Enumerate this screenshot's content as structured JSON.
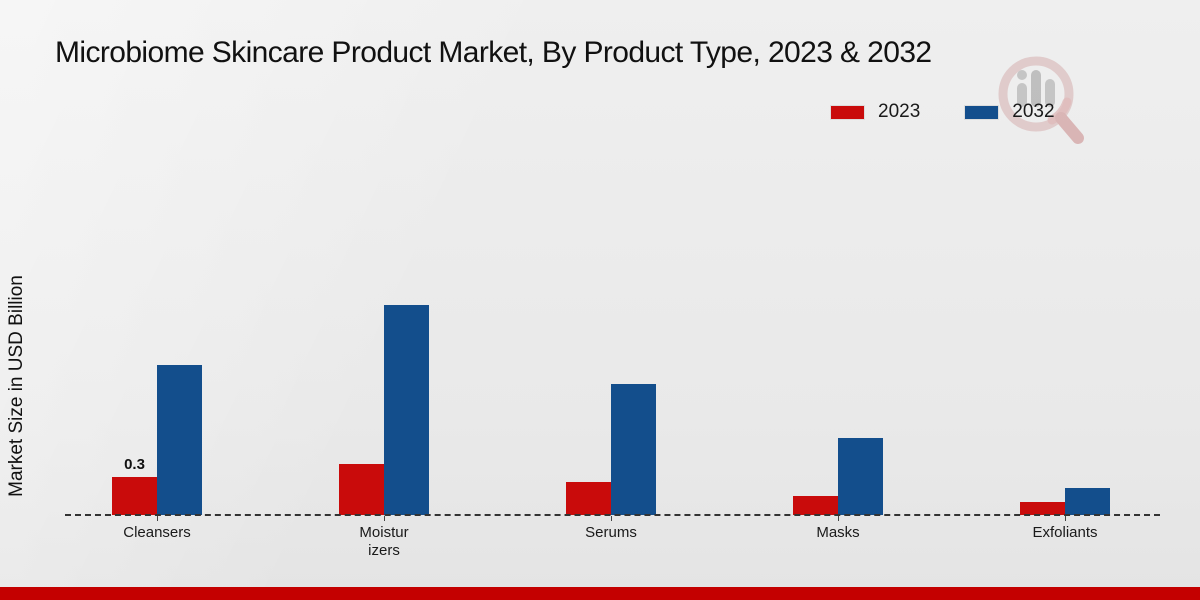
{
  "page": {
    "title": "Microbiome Skincare Product Market, By Product Type, 2023 & 2032",
    "y_axis_label": "Market Size in USD Billion"
  },
  "legend": {
    "items": [
      {
        "label": "2023",
        "color": "#c90b0b"
      },
      {
        "label": "2032",
        "color": "#134e8c"
      }
    ]
  },
  "chart_data": {
    "type": "bar",
    "title": "Microbiome Skincare Product Market, By Product Type, 2023 & 2032",
    "categories": [
      "Cleansers",
      "Moisturizers",
      "Serums",
      "Masks",
      "Exfoliants"
    ],
    "category_display": [
      "Cleansers",
      "Moistur izers",
      "Serums",
      "Masks",
      "Exfoliants"
    ],
    "series": [
      {
        "name": "2023",
        "color": "#c90b0b",
        "values": [
          0.3,
          0.4,
          0.26,
          0.15,
          0.1
        ]
      },
      {
        "name": "2032",
        "color": "#134e8c",
        "values": [
          1.18,
          1.65,
          1.03,
          0.61,
          0.21
        ]
      }
    ],
    "xlabel": "",
    "ylabel": "Market Size in USD Billion",
    "ylim": [
      0,
      1.8
    ],
    "grid": false,
    "legend_position": "top-right",
    "baseline_style": "dashed",
    "data_labels": [
      {
        "category": "Cleansers",
        "series": "2023",
        "text": "0.3"
      }
    ]
  },
  "colors": {
    "bar_2023": "#c90b0b",
    "bar_2032": "#134e8c",
    "footer_bar": "#c40000",
    "background": "#ebebeb",
    "baseline": "#333333",
    "watermark_ring": "#c89898",
    "watermark_bars": "#8f8f8f"
  }
}
